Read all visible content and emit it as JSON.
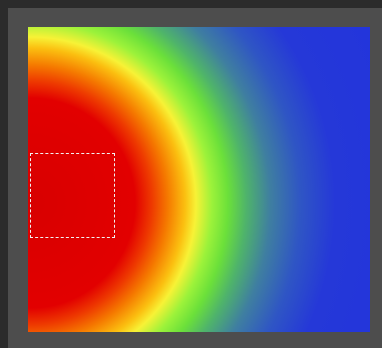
{
  "view": {
    "type": "heatmap-canvas",
    "colormap": [
      "#d80000",
      "#f57a00",
      "#f7f236",
      "#6be03a",
      "#3f7fa0",
      "#2233dd"
    ],
    "frame_color": "#4d4d4d",
    "background_color": "#2b2b2b"
  },
  "selection": {
    "style": "dashed",
    "color": "#f2f2f2"
  }
}
